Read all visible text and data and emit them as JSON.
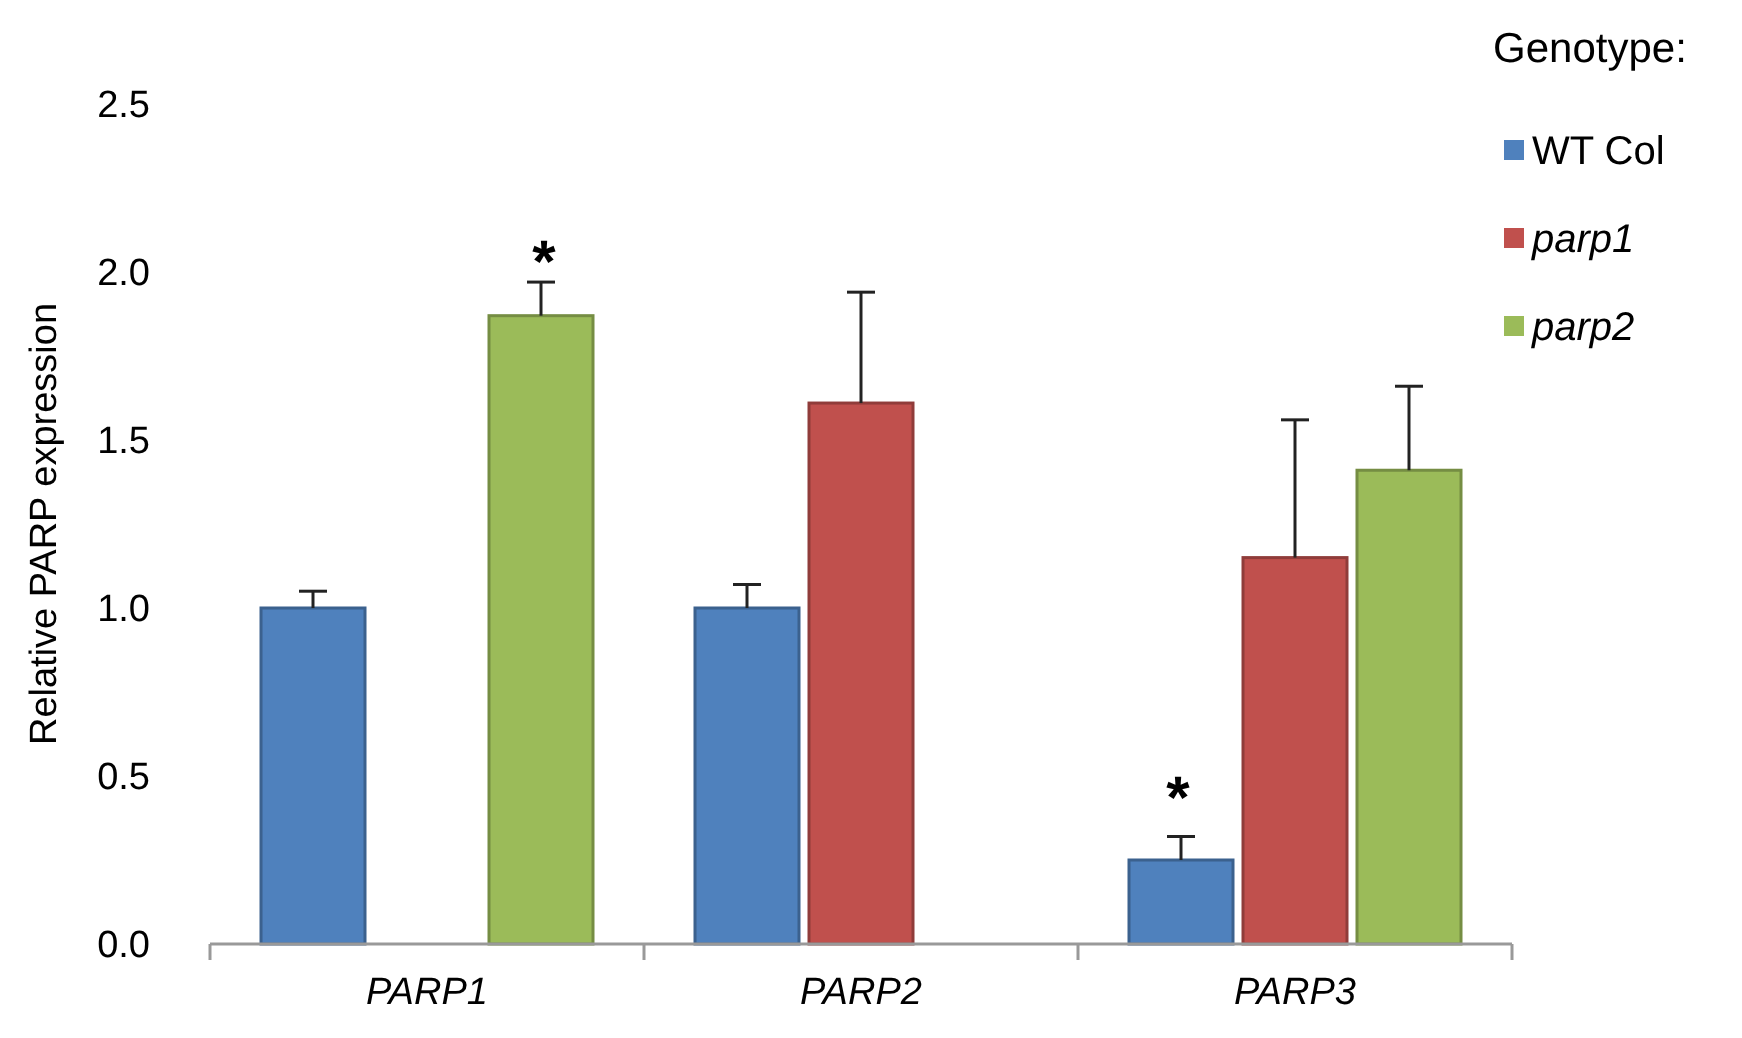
{
  "chart_data": {
    "type": "bar",
    "ylabel": "Relative PARP expression",
    "legend_title": "Genotype:",
    "categories": [
      "PARP1",
      "PARP2",
      "PARP3"
    ],
    "series": [
      {
        "name": "WT Col",
        "color": "#4f81bd",
        "values": [
          1.0,
          1.0,
          0.25
        ],
        "errors": [
          0.05,
          0.07,
          0.07
        ]
      },
      {
        "name": "parp1",
        "color": "#c0504d",
        "values": [
          null,
          1.61,
          1.15
        ],
        "errors": [
          null,
          0.33,
          0.41
        ]
      },
      {
        "name": "parp2",
        "color": "#9bbb59",
        "values": [
          1.87,
          null,
          1.41
        ],
        "errors": [
          0.1,
          null,
          0.25
        ]
      }
    ],
    "ylim": [
      0,
      2.5
    ],
    "yticks": [
      {
        "value": 0,
        "label": "0.0"
      },
      {
        "value": 0.5,
        "label": "0.5"
      },
      {
        "value": 1,
        "label": "1.0"
      },
      {
        "value": 1.5,
        "label": "1.5"
      },
      {
        "value": 2,
        "label": "2.0"
      },
      {
        "value": 2.5,
        "label": "2.5"
      }
    ],
    "grid": false,
    "legend": "top right",
    "annotations": [
      "*",
      "*"
    ]
  }
}
